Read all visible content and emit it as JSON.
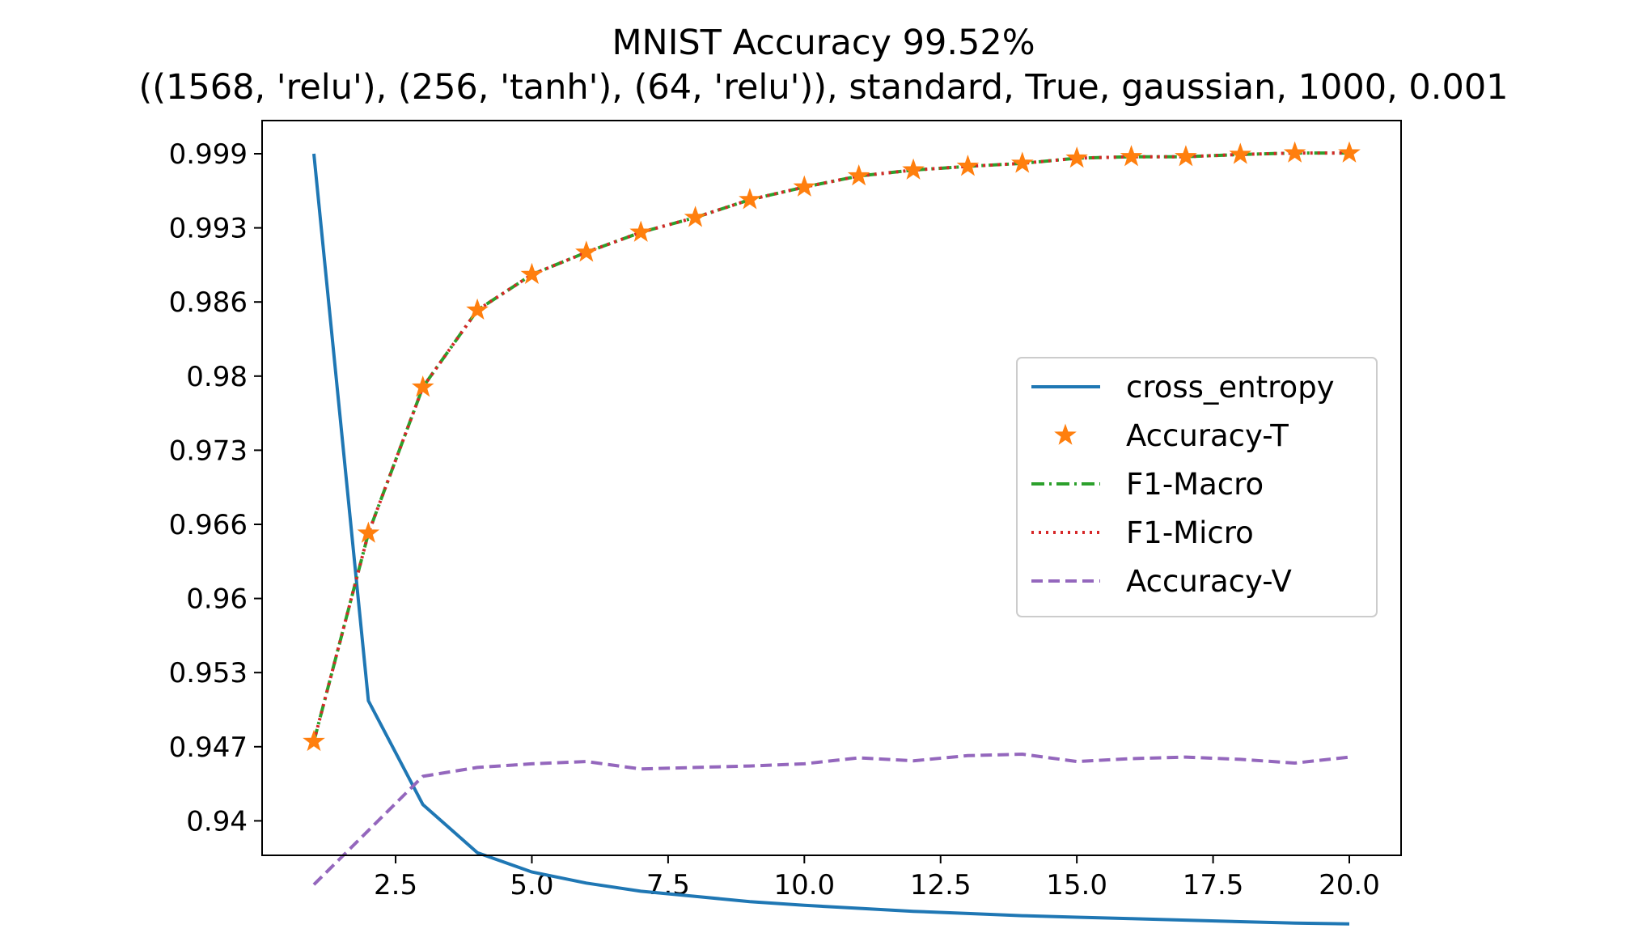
{
  "chart_data": {
    "type": "line",
    "title": "MNIST Accuracy 99.52%",
    "subtitle": "((1568, 'relu'), (256, 'tanh'), (64, 'relu')), standard, True, gaussian, 1000, 0.001",
    "xlabel": "",
    "ylabel": "",
    "x": [
      1,
      2,
      3,
      4,
      5,
      6,
      7,
      8,
      9,
      10,
      11,
      12,
      13,
      14,
      15,
      16,
      17,
      18,
      19,
      20
    ],
    "x_ticks": [
      2.5,
      5.0,
      7.5,
      10.0,
      12.5,
      15.0,
      17.5,
      20.0
    ],
    "x_tick_labels": [
      "2.5",
      "5.0",
      "7.5",
      "10.0",
      "12.5",
      "15.0",
      "17.5",
      "20.0"
    ],
    "y_tick_labels": [
      "0.94",
      "0.947",
      "0.953",
      "0.96",
      "0.966",
      "0.973",
      "0.98",
      "0.986",
      "0.993",
      "0.999"
    ],
    "xlim": [
      0.05,
      20.95
    ],
    "grid": false,
    "legend_position": "center-right",
    "series": [
      {
        "name": "cross_entropy",
        "style": "solid",
        "color": "#1f77b4",
        "y_index": [
          0.0,
          7.38,
          8.78,
          9.43,
          9.69,
          9.84,
          9.95,
          10.02,
          10.09,
          10.14,
          10.18,
          10.22,
          10.25,
          10.28,
          10.3,
          10.32,
          10.34,
          10.36,
          10.38,
          10.39
        ]
      },
      {
        "name": "Accuracy-T",
        "style": "star-markers",
        "color": "#ff7f0e",
        "y_index": [
          7.93,
          5.12,
          3.15,
          2.11,
          1.63,
          1.33,
          1.06,
          0.86,
          0.62,
          0.45,
          0.3,
          0.22,
          0.17,
          0.13,
          0.06,
          0.04,
          0.04,
          0.01,
          -0.01,
          -0.01
        ]
      },
      {
        "name": "F1-Macro",
        "style": "dashdot",
        "color": "#2ca02c",
        "y_index": [
          7.93,
          5.12,
          3.15,
          2.11,
          1.63,
          1.33,
          1.06,
          0.86,
          0.62,
          0.45,
          0.3,
          0.22,
          0.17,
          0.13,
          0.06,
          0.04,
          0.04,
          0.01,
          -0.01,
          -0.01
        ]
      },
      {
        "name": "F1-Micro",
        "style": "dotted",
        "color": "#d62728",
        "y_index": [
          7.93,
          5.12,
          3.15,
          2.11,
          1.63,
          1.33,
          1.06,
          0.86,
          0.62,
          0.45,
          0.3,
          0.22,
          0.17,
          0.13,
          0.06,
          0.04,
          0.04,
          0.01,
          -0.01,
          -0.01
        ]
      },
      {
        "name": "Accuracy-V",
        "style": "dashed",
        "color": "#9467bd",
        "y_index": [
          9.86,
          9.13,
          8.4,
          8.28,
          8.23,
          8.2,
          8.3,
          8.28,
          8.26,
          8.23,
          8.15,
          8.19,
          8.12,
          8.1,
          8.2,
          8.16,
          8.14,
          8.17,
          8.22,
          8.14
        ]
      }
    ]
  }
}
